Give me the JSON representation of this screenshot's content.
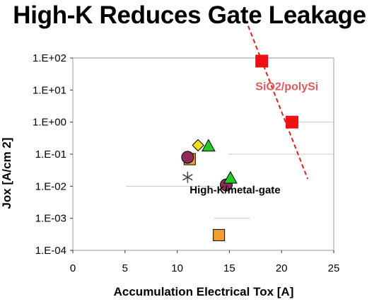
{
  "chart_data": {
    "type": "scatter",
    "title": "High-K Reduces Gate Leakage",
    "xlabel": "Accumulation Electrical Tox [A]",
    "ylabel": "Jox [A/cm 2]",
    "xlim": [
      0,
      25
    ],
    "ylim": [
      0.0001,
      100
    ],
    "yscale": "log",
    "xticks": [
      "0",
      "5",
      "10",
      "15",
      "20",
      "25"
    ],
    "yticks": [
      "1.E-04",
      "1.E-03",
      "1.E-02",
      "1.E-01",
      "1.E+00",
      "1.E+01",
      "1.E+02"
    ],
    "grid": "horizontal-partial",
    "series": [
      {
        "name": "SiO2/polySi",
        "marker": "square",
        "color": "#ee1111",
        "points": [
          [
            18.1,
            80
          ],
          [
            21,
            1.0
          ]
        ],
        "trendline": [
          [
            16.8,
            1000
          ],
          [
            22.5,
            0.017
          ]
        ]
      },
      {
        "marker": "square",
        "color": "#f0a030",
        "points": [
          [
            11.2,
            0.07
          ],
          [
            14,
            0.0003
          ]
        ]
      },
      {
        "marker": "circle",
        "color": "#8e2a5a",
        "points": [
          [
            11,
            0.08
          ],
          [
            14.7,
            0.011
          ]
        ]
      },
      {
        "marker": "triangle",
        "color": "#22cc22",
        "points": [
          [
            13,
            0.18
          ],
          [
            15.1,
            0.018
          ]
        ]
      },
      {
        "marker": "diamond",
        "color": "#f0e020",
        "points": [
          [
            12,
            0.19
          ]
        ]
      },
      {
        "marker": "asterisk",
        "color": "#444444",
        "points": [
          [
            11,
            0.019
          ]
        ]
      }
    ],
    "annotations": [
      {
        "text": "SiO2/polySi",
        "x": 17.5,
        "y": 10,
        "style": "red"
      },
      {
        "text": "High-K/metal-gate",
        "x": 11.2,
        "y": 0.006,
        "style": "black"
      }
    ]
  }
}
